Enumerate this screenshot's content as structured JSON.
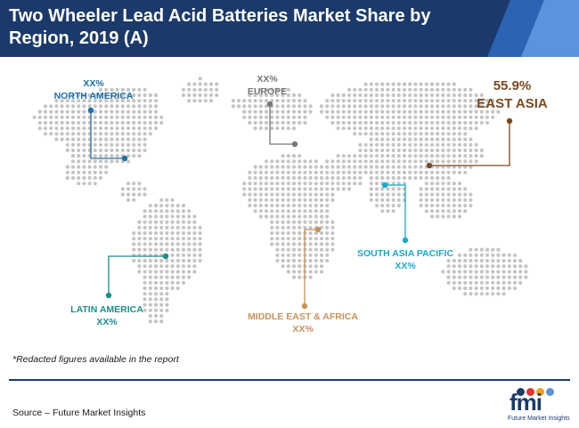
{
  "header": {
    "title": "Two Wheeler Lead Acid Batteries Market Share by Region, 2019 (A)"
  },
  "chart_data": {
    "type": "map",
    "title": "Two Wheeler Lead Acid Batteries Market Share by Region, 2019 (A)",
    "regions": [
      {
        "name": "NORTH AMERICA",
        "value": "XX%",
        "color": "#1f6fa9"
      },
      {
        "name": "EUROPE",
        "value": "XX%",
        "color": "#777777"
      },
      {
        "name": "EAST ASIA",
        "value": "55.9%",
        "color": "#7b4a22"
      },
      {
        "name": "SOUTH ASIA PACIFIC",
        "value": "XX%",
        "color": "#1ba9c9"
      },
      {
        "name": "LATIN AMERICA",
        "value": "XX%",
        "color": "#1b8f8a"
      },
      {
        "name": "MIDDLE EAST & AFRICA",
        "value": "XX%",
        "color": "#c8925a"
      }
    ]
  },
  "footnote": "*Redacted figures available in the report",
  "source": "Source – Future Market Insights",
  "logo": {
    "text": "fmi",
    "subtitle": "Future Market Insights",
    "dot_colors": [
      "#1b3a6b",
      "#e2342d",
      "#f0a21e",
      "#5b93dd"
    ]
  },
  "map_color": "#c4c4c4"
}
